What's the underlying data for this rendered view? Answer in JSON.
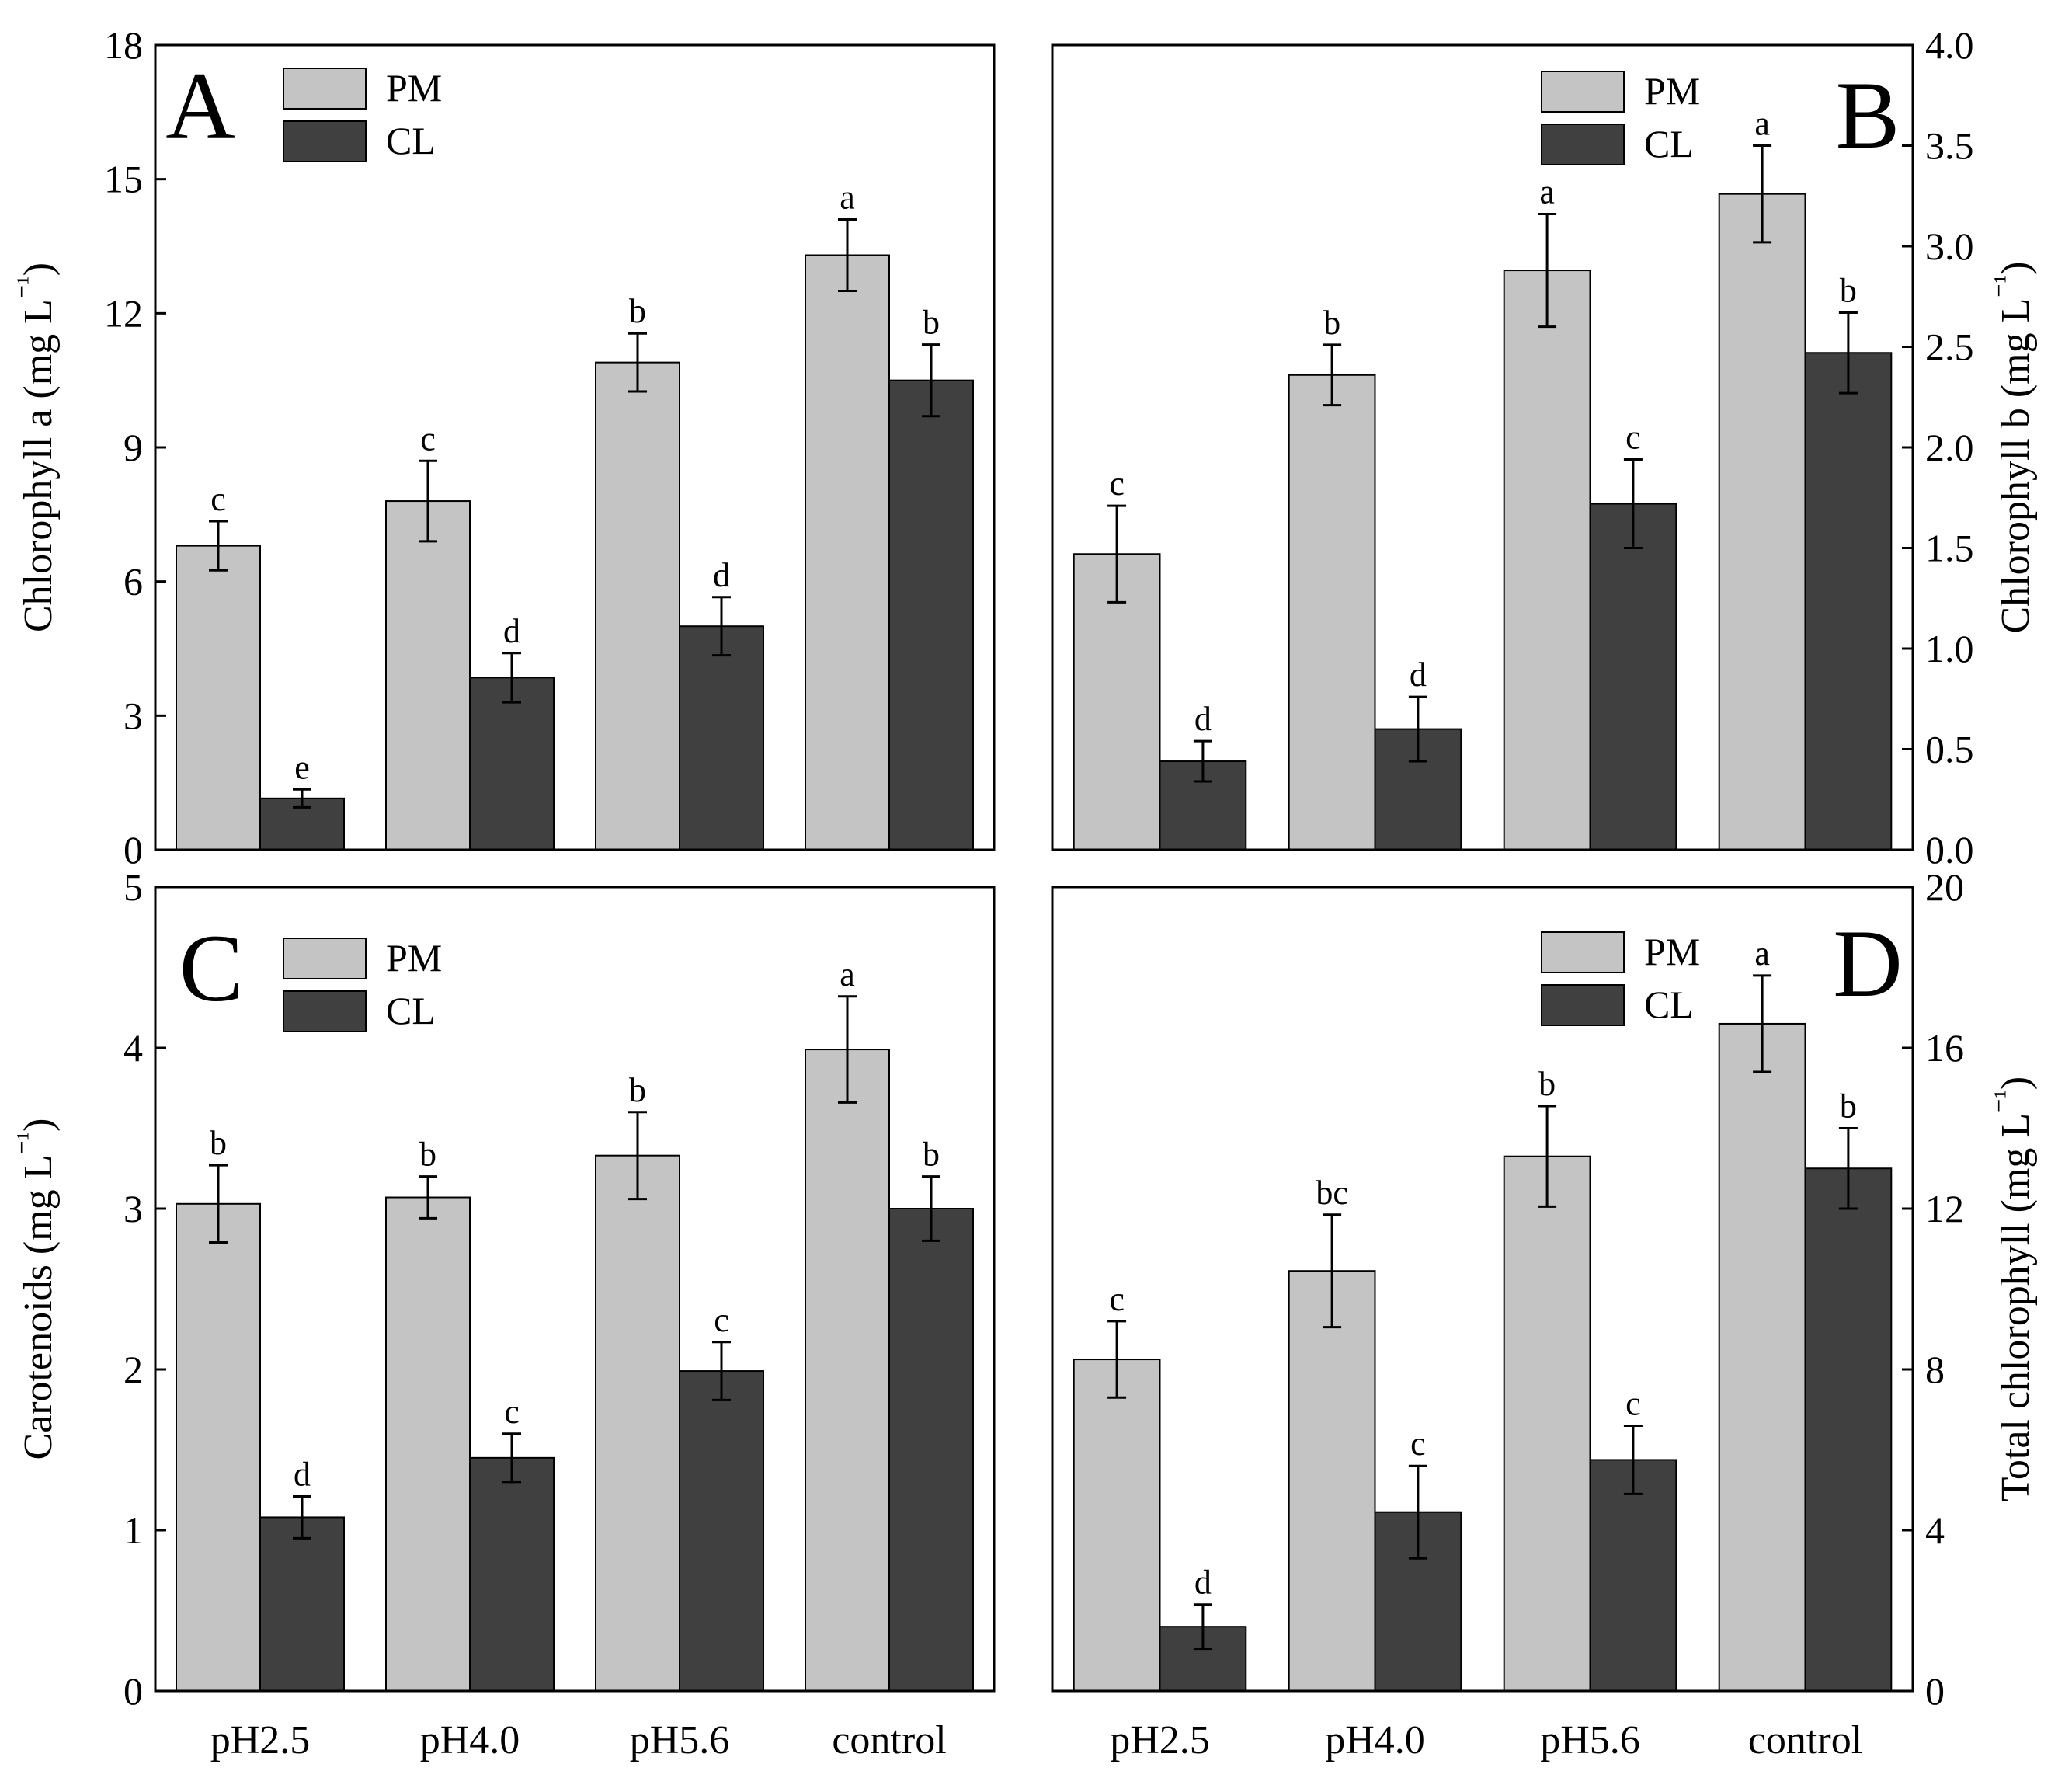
{
  "figure": {
    "legend_labels": [
      "PM",
      "CL"
    ],
    "colors": {
      "PM": "#c4c4c4",
      "CL": "#404040",
      "frame": "#000000"
    }
  },
  "chart_data": [
    {
      "panel": "A",
      "type": "bar",
      "ylabel": "Chlorophyll a (mg L⁻¹)",
      "ylim": [
        0,
        18
      ],
      "yticks": [
        "0",
        "3",
        "6",
        "9",
        "12",
        "15",
        "18"
      ],
      "y_axis_side": "left",
      "categories": [
        "pH2.5",
        "pH4.0",
        "pH5.6",
        "control"
      ],
      "series": [
        {
          "name": "PM",
          "values": [
            6.8,
            7.8,
            10.9,
            13.3
          ],
          "errors": [
            0.55,
            0.9,
            0.65,
            0.8
          ],
          "letters": [
            "c",
            "c",
            "b",
            "a"
          ]
        },
        {
          "name": "CL",
          "values": [
            1.15,
            3.85,
            5.0,
            10.5
          ],
          "errors": [
            0.2,
            0.55,
            0.65,
            0.8
          ],
          "letters": [
            "e",
            "d",
            "d",
            "b"
          ]
        }
      ]
    },
    {
      "panel": "B",
      "type": "bar",
      "ylabel": "Chlorophyll b (mg L⁻¹)",
      "ylim": [
        0,
        4
      ],
      "yticks": [
        "0.0",
        "0.5",
        "1.0",
        "1.5",
        "2.0",
        "2.5",
        "3.0",
        "3.5",
        "4.0"
      ],
      "y_axis_side": "right",
      "categories": [
        "pH2.5",
        "pH4.0",
        "pH5.6",
        "control"
      ],
      "series": [
        {
          "name": "PM",
          "values": [
            1.47,
            2.36,
            2.88,
            3.26
          ],
          "errors": [
            0.24,
            0.15,
            0.28,
            0.24
          ],
          "letters": [
            "c",
            "b",
            "a",
            "a"
          ]
        },
        {
          "name": "CL",
          "values": [
            0.44,
            0.6,
            1.72,
            2.47
          ],
          "errors": [
            0.1,
            0.16,
            0.22,
            0.2
          ],
          "letters": [
            "d",
            "d",
            "c",
            "b"
          ]
        }
      ]
    },
    {
      "panel": "C",
      "type": "bar",
      "ylabel": "Carotenoids (mg L⁻¹)",
      "ylim": [
        0,
        5
      ],
      "yticks": [
        "0",
        "1",
        "2",
        "3",
        "4",
        "5"
      ],
      "y_axis_side": "left",
      "categories": [
        "pH2.5",
        "pH4.0",
        "pH5.6",
        "control"
      ],
      "series": [
        {
          "name": "PM",
          "values": [
            3.03,
            3.07,
            3.33,
            3.99
          ],
          "errors": [
            0.24,
            0.13,
            0.27,
            0.33
          ],
          "letters": [
            "b",
            "b",
            "b",
            "a"
          ]
        },
        {
          "name": "CL",
          "values": [
            1.08,
            1.45,
            1.99,
            3.0
          ],
          "errors": [
            0.13,
            0.15,
            0.18,
            0.2
          ],
          "letters": [
            "d",
            "c",
            "c",
            "b"
          ]
        }
      ]
    },
    {
      "panel": "D",
      "type": "bar",
      "ylabel": "Total chlorophyll (mg L⁻¹)",
      "ylim": [
        0,
        20
      ],
      "yticks": [
        "0",
        "4",
        "8",
        "12",
        "16",
        "20"
      ],
      "y_axis_side": "right",
      "categories": [
        "pH2.5",
        "pH4.0",
        "pH5.6",
        "control"
      ],
      "series": [
        {
          "name": "PM",
          "values": [
            8.25,
            10.45,
            13.3,
            16.6
          ],
          "errors": [
            0.95,
            1.4,
            1.25,
            1.2
          ],
          "letters": [
            "c",
            "bc",
            "b",
            "a"
          ]
        },
        {
          "name": "CL",
          "values": [
            1.6,
            4.45,
            5.75,
            13.0
          ],
          "errors": [
            0.55,
            1.15,
            0.85,
            1.0
          ],
          "letters": [
            "d",
            "c",
            "c",
            "b"
          ]
        }
      ]
    }
  ]
}
